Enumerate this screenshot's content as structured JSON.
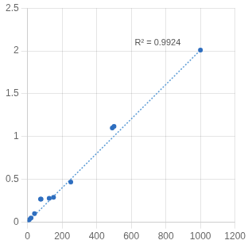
{
  "chart_data": {
    "type": "scatter",
    "x": [
      0,
      10,
      20,
      40,
      75,
      78,
      125,
      150,
      250,
      490,
      500,
      1000
    ],
    "y": [
      0.0,
      0.03,
      0.05,
      0.1,
      0.27,
      0.27,
      0.28,
      0.29,
      0.47,
      1.1,
      1.12,
      2.01
    ],
    "color": "#2E6EBF",
    "marker": "circle",
    "trendline": {
      "type": "line",
      "x": [
        0,
        1000
      ],
      "y": [
        0.0,
        2.01
      ],
      "color": "#5B9BD5",
      "line_style": "dotted"
    },
    "annotations": [
      {
        "text": "R² = 0.9924",
        "x": 620,
        "y": 2.04
      }
    ],
    "xlim": [
      0,
      1200
    ],
    "ylim": [
      0,
      2.5
    ],
    "xticks": [
      0,
      200,
      400,
      600,
      800,
      1000,
      1200
    ],
    "yticks": [
      0,
      0.5,
      1,
      1.5,
      2,
      2.5
    ],
    "grid": true
  }
}
